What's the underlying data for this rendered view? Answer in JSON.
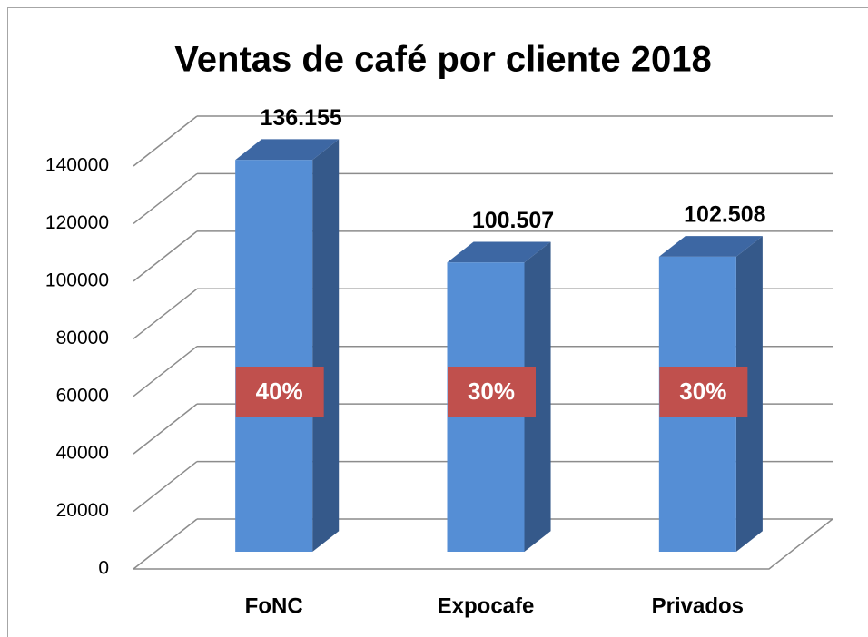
{
  "chart_data": {
    "type": "bar3d",
    "title": "Ventas de café por cliente 2018",
    "categories": [
      "FoNC",
      "Expocafe",
      "Privados"
    ],
    "values": [
      136155,
      100507,
      102508
    ],
    "value_labels": [
      "136.155",
      "100.507",
      "102.508"
    ],
    "shares": [
      40,
      30,
      30
    ],
    "share_labels": [
      "40%",
      "30%",
      "30%"
    ],
    "color": "#558ed5",
    "share_color": "#c0504d",
    "ylim": [
      0,
      140000
    ],
    "yticks": [
      0,
      20000,
      40000,
      60000,
      80000,
      100000,
      120000,
      140000
    ],
    "grid": true
  }
}
